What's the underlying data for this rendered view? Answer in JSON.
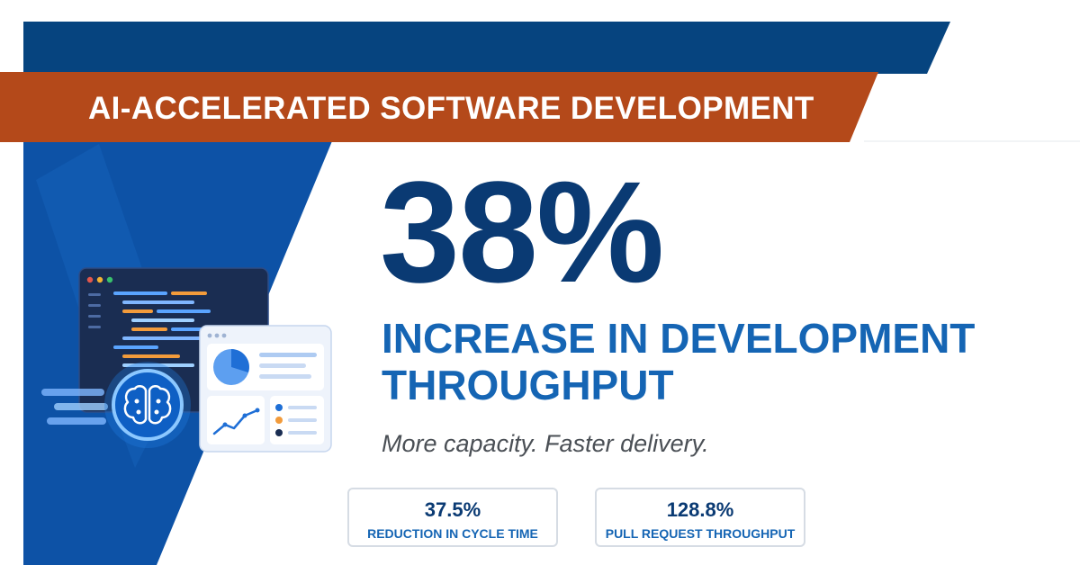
{
  "banner": {
    "title": "AI-ACCELERATED SOFTWARE DEVELOPMENT"
  },
  "hero": {
    "stat": "38%",
    "headline_line1": "INCREASE IN DEVELOPMENT",
    "headline_line2": "THROUGHPUT",
    "tagline": "More capacity. Faster delivery."
  },
  "stats": [
    {
      "value": "37.5%",
      "label": "REDUCTION IN CYCLE TIME"
    },
    {
      "value": "128.8%",
      "label": "PULL REQUEST THROUGHPUT"
    }
  ],
  "illustration": {
    "icons": [
      "code-editor-window-icon",
      "dashboard-window-icon",
      "pie-chart-icon",
      "line-chart-icon",
      "ai-brain-icon"
    ]
  },
  "colors": {
    "navy": "#0a3a73",
    "blue": "#1565b4",
    "banner_orange": "#b4491a",
    "text_gray": "#4a4f55",
    "card_border": "#d6dce4"
  }
}
